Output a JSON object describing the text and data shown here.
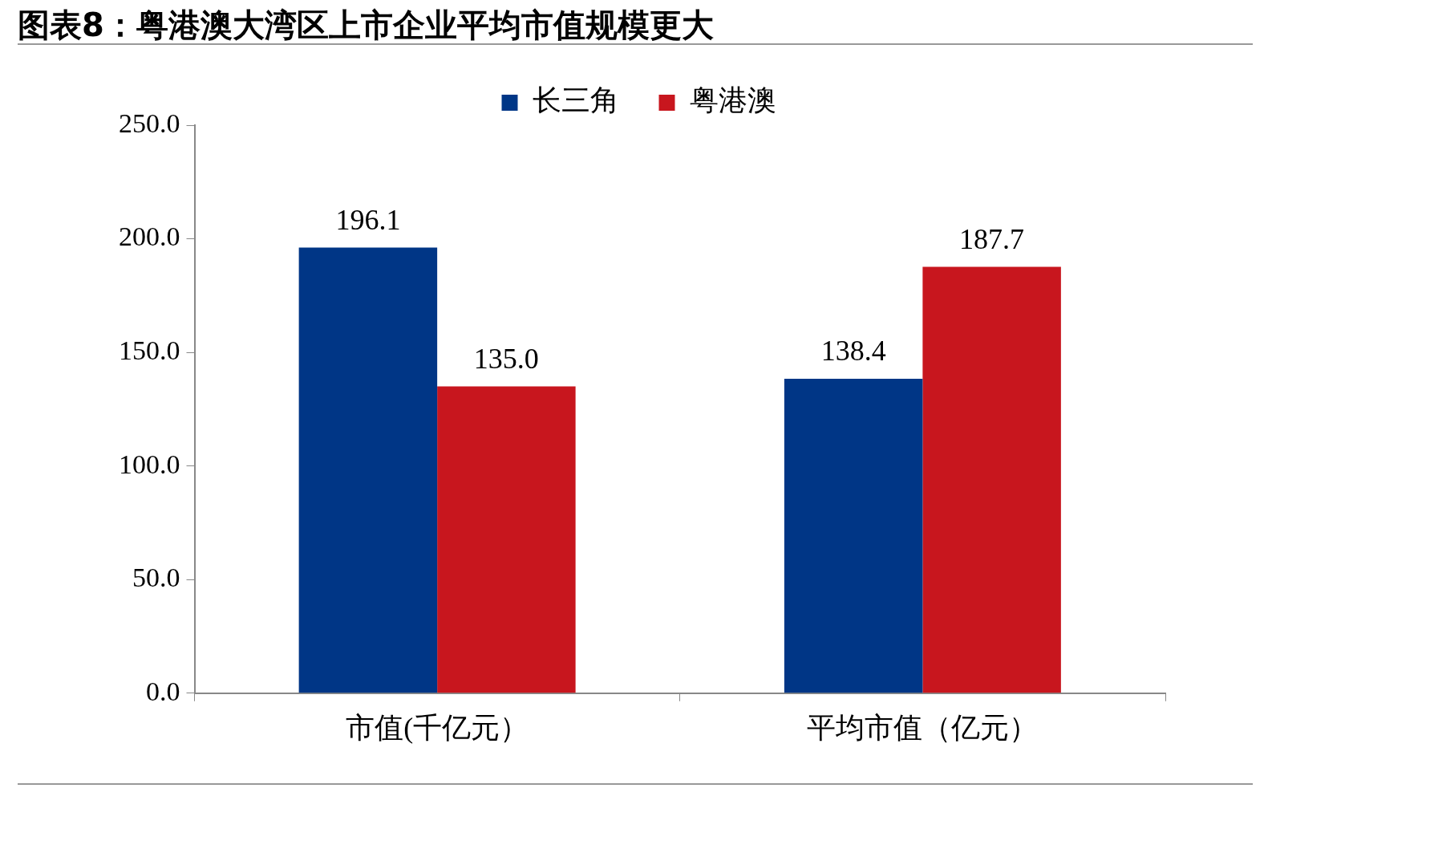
{
  "chart_data": {
    "type": "bar",
    "title": "图表8：粤港澳大湾区上市企业平均市值规模更大",
    "categories": [
      "市值(千亿元）",
      "平均市值（亿元）"
    ],
    "series": [
      {
        "name": "长三角",
        "color": "#003686",
        "values": [
          196.1,
          138.4
        ],
        "value_labels": [
          "196.1",
          "138.4"
        ]
      },
      {
        "name": "粤港澳",
        "color": "#c8161e",
        "values": [
          135.0,
          187.7
        ],
        "value_labels": [
          "135.0",
          "187.7"
        ]
      }
    ],
    "ylim": [
      0,
      250
    ],
    "yticks": [
      {
        "value": 0,
        "label": "0.0"
      },
      {
        "value": 50,
        "label": "50.0"
      },
      {
        "value": 100,
        "label": "100.0"
      },
      {
        "value": 150,
        "label": "150.0"
      },
      {
        "value": 200,
        "label": "200.0"
      },
      {
        "value": 250,
        "label": "250.0"
      }
    ],
    "grid": false,
    "legend": "top"
  }
}
